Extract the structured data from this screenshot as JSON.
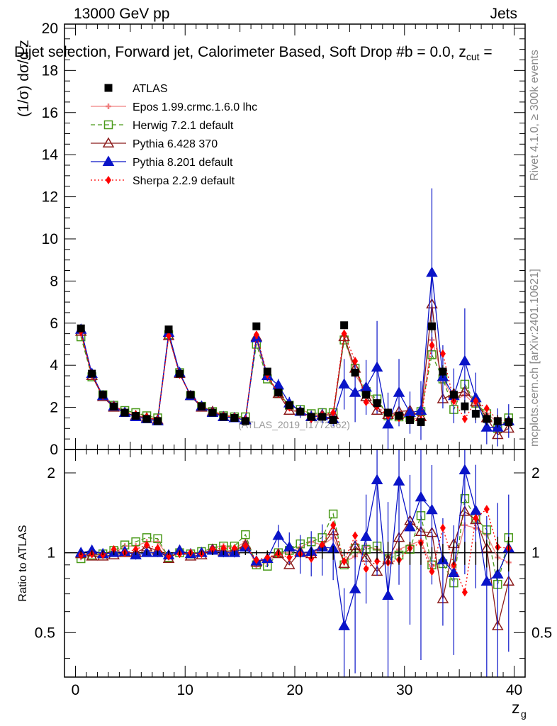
{
  "header": {
    "left": "13000 GeV pp",
    "right": "Jets",
    "title": "Dijet selection, Forward jet, Calorimeter Based, Soft Drop #b = 0.0, z",
    "title_sub": "cut",
    "title_tail": " ="
  },
  "side_labels": {
    "rivet": "Rivet 4.1.0, ≥ 300k events",
    "mcplots": "mcplots.cern.ch [arXiv:2401.10621]"
  },
  "watermark": "(ATLAS_2019_I1772062)",
  "chart_data": {
    "type": "line",
    "title": "Dijet selection, Forward jet, Calorimeter Based, Soft Drop",
    "xlabel": "z_g",
    "ylabel": "(1/σ) dσ/d z_g",
    "ratio_ylabel": "Ratio to ATLAS",
    "xlim": [
      -1,
      41
    ],
    "ylim": [
      0,
      20.2
    ],
    "ratio_ylim": [
      0.34,
      2.45
    ],
    "x_ticks": [
      0,
      10,
      20,
      30,
      40
    ],
    "y_ticks": [
      0,
      2,
      4,
      6,
      8,
      10,
      12,
      14,
      16,
      18,
      20
    ],
    "ratio_ticks": [
      0.5,
      1,
      2
    ],
    "x": [
      0.5,
      1.5,
      2.5,
      3.5,
      4.5,
      5.5,
      6.5,
      7.5,
      8.5,
      9.5,
      10.5,
      11.5,
      12.5,
      13.5,
      14.5,
      15.5,
      16.5,
      17.5,
      18.5,
      19.5,
      20.5,
      21.5,
      22.5,
      23.5,
      24.5,
      25.5,
      26.5,
      27.5,
      28.5,
      29.5,
      30.5,
      31.5,
      32.5,
      33.5,
      34.5,
      35.5,
      36.5,
      37.5,
      38.5,
      39.5
    ],
    "series": [
      {
        "name": "ATLAS",
        "marker": "square-filled",
        "color": "#000000",
        "values": [
          5.75,
          3.6,
          2.6,
          2.05,
          1.75,
          1.6,
          1.45,
          1.35,
          5.7,
          3.6,
          2.6,
          2.05,
          1.75,
          1.55,
          1.5,
          1.35,
          5.85,
          3.7,
          2.7,
          2.1,
          1.8,
          1.55,
          1.55,
          1.4,
          5.9,
          3.65,
          2.6,
          2.2,
          1.75,
          1.6,
          1.4,
          1.3,
          5.85,
          3.7,
          2.6,
          2.05,
          1.7,
          1.45,
          1.35,
          1.3
        ],
        "errors": [
          0.05,
          0.05,
          0.05,
          0.05,
          0.04,
          0.04,
          0.04,
          0.04,
          0.06,
          0.05,
          0.05,
          0.05,
          0.05,
          0.05,
          0.05,
          0.05,
          0.08,
          0.08,
          0.07,
          0.07,
          0.08,
          0.08,
          0.08,
          0.09,
          0.15,
          0.15,
          0.15,
          0.2,
          0.2,
          0.2,
          0.2,
          0.2,
          0.3,
          0.3,
          0.3,
          0.3,
          0.3,
          0.3,
          0.3,
          0.3
        ]
      },
      {
        "name": "Epos 1.99.crmc.1.6.0 lhc",
        "marker": "cross",
        "color": "#f08080",
        "dash": "",
        "values": [
          5.5,
          3.5,
          2.55,
          2.05,
          1.85,
          1.7,
          1.6,
          1.5,
          5.45,
          3.6,
          2.55,
          2.05,
          1.85,
          1.65,
          1.55,
          1.5,
          5.2,
          3.4,
          2.7,
          2.1,
          1.9,
          1.7,
          1.65,
          1.6,
          5.4,
          3.55,
          2.75,
          2.25,
          1.7,
          1.65,
          1.5,
          1.45,
          5.2,
          3.4,
          2.3,
          2.6,
          2.1,
          1.7,
          1.3,
          1.2
        ]
      },
      {
        "name": "Herwig 7.2.1 default",
        "marker": "square-open",
        "color": "#4a9a1a",
        "dash": "6,4",
        "values": [
          5.35,
          3.45,
          2.6,
          2.1,
          1.85,
          1.75,
          1.6,
          1.5,
          5.45,
          3.65,
          2.55,
          2.05,
          1.8,
          1.6,
          1.55,
          1.55,
          5.0,
          3.35,
          2.65,
          2.1,
          1.9,
          1.7,
          1.75,
          1.75,
          5.2,
          3.85,
          2.75,
          2.4,
          1.6,
          1.55,
          1.5,
          1.8,
          4.5,
          3.35,
          1.9,
          3.1,
          2.2,
          1.7,
          1.0,
          1.5
        ]
      },
      {
        "name": "Pythia 6.428 370",
        "marker": "triangle-open",
        "color": "#8b1a1a",
        "dash": "",
        "values": [
          5.6,
          3.5,
          2.5,
          2.0,
          1.75,
          1.6,
          1.5,
          1.4,
          5.4,
          3.6,
          2.55,
          2.0,
          1.8,
          1.55,
          1.5,
          1.4,
          5.35,
          3.5,
          2.65,
          1.85,
          1.8,
          1.55,
          1.65,
          1.65,
          5.35,
          3.85,
          2.5,
          1.85,
          1.65,
          1.8,
          1.85,
          1.55,
          6.9,
          2.4,
          2.65,
          2.75,
          2.25,
          1.5,
          0.7,
          1.0
        ]
      },
      {
        "name": "Pythia 8.201 default",
        "marker": "triangle-filled",
        "color": "#0a14c8",
        "dash": "",
        "values": [
          5.7,
          3.6,
          2.55,
          2.05,
          1.75,
          1.55,
          1.45,
          1.35,
          5.55,
          3.65,
          2.55,
          2.05,
          1.75,
          1.55,
          1.5,
          1.4,
          5.3,
          3.5,
          3.05,
          2.2,
          1.8,
          1.55,
          1.6,
          1.45,
          3.1,
          2.7,
          2.95,
          3.9,
          1.2,
          2.7,
          1.75,
          1.85,
          8.4,
          3.45,
          2.55,
          4.2,
          2.45,
          1.05,
          1.05,
          1.35
        ],
        "errors": [
          0.08,
          0.07,
          0.06,
          0.06,
          0.06,
          0.06,
          0.05,
          0.05,
          0.1,
          0.08,
          0.07,
          0.06,
          0.06,
          0.06,
          0.06,
          0.06,
          0.25,
          0.25,
          0.3,
          0.3,
          0.3,
          0.3,
          0.35,
          0.35,
          1.2,
          1.4,
          1.3,
          2.2,
          1.5,
          1.6,
          1.0,
          1.4,
          4.0,
          1.5,
          1.3,
          2.5,
          1.2,
          0.8,
          0.9,
          0.8
        ]
      },
      {
        "name": "Sherpa 2.2.9 default",
        "marker": "diamond-filled",
        "color": "#ff0000",
        "dash": "2,3",
        "values": [
          5.6,
          3.55,
          2.55,
          2.1,
          1.75,
          1.65,
          1.55,
          1.4,
          5.4,
          3.55,
          2.6,
          2.05,
          1.8,
          1.6,
          1.55,
          1.4,
          5.45,
          3.55,
          2.65,
          2.0,
          1.8,
          1.45,
          1.65,
          1.75,
          5.5,
          4.2,
          2.25,
          2.05,
          1.6,
          1.5,
          1.45,
          1.4,
          4.95,
          4.55,
          2.3,
          1.45,
          2.3,
          1.95,
          1.4,
          1.35
        ]
      }
    ],
    "ratios": {
      "Epos 1.99.crmc.1.6.0 lhc": [
        0.96,
        0.98,
        0.98,
        1.0,
        1.06,
        1.06,
        1.1,
        1.1,
        0.96,
        1.0,
        0.98,
        1.0,
        1.05,
        1.06,
        1.04,
        1.1,
        0.89,
        0.92,
        1.0,
        1.0,
        1.05,
        1.1,
        1.07,
        1.14,
        0.92,
        0.97,
        1.06,
        1.03,
        0.97,
        1.03,
        1.07,
        1.11,
        0.89,
        0.92,
        0.88,
        1.27,
        1.24,
        1.17,
        0.96,
        0.92
      ],
      "Herwig 7.2.1 default": [
        0.95,
        0.98,
        0.99,
        1.02,
        1.07,
        1.1,
        1.14,
        1.13,
        0.96,
        1.0,
        0.99,
        1.01,
        1.04,
        1.06,
        1.06,
        1.17,
        0.9,
        0.89,
        1.0,
        1.02,
        1.08,
        1.1,
        1.14,
        1.4,
        0.9,
        1.04,
        1.03,
        1.06,
        0.95,
        0.98,
        1.03,
        1.38,
        0.9,
        0.91,
        0.77,
        1.6,
        1.35,
        1.22,
        0.76,
        1.14
      ],
      "Pythia 6.428 370": [
        0.99,
        0.97,
        0.97,
        0.98,
        1.0,
        1.0,
        1.05,
        1.02,
        0.95,
        1.02,
        0.97,
        0.98,
        1.03,
        1.01,
        1.02,
        1.07,
        0.92,
        0.95,
        0.99,
        0.9,
        1.01,
        0.99,
        1.06,
        1.21,
        0.91,
        1.06,
        0.96,
        0.85,
        0.94,
        1.14,
        1.32,
        1.2,
        1.19,
        0.67,
        1.08,
        1.43,
        1.33,
        1.04,
        0.53,
        0.78
      ],
      "Pythia 8.201 default": [
        1.0,
        1.02,
        0.99,
        1.0,
        1.01,
        0.98,
        1.0,
        1.0,
        0.98,
        1.02,
        0.99,
        1.0,
        1.02,
        1.0,
        1.0,
        1.05,
        0.93,
        0.95,
        1.16,
        1.05,
        1.0,
        1.01,
        1.05,
        1.04,
        0.53,
        0.73,
        1.15,
        1.88,
        0.69,
        1.86,
        1.25,
        1.62,
        1.45,
        0.94,
        0.84,
        2.05,
        1.44,
        0.78,
        0.83,
        1.04
      ],
      "Sherpa 2.2.9 default": [
        0.98,
        0.99,
        0.98,
        1.03,
        1.0,
        1.03,
        1.07,
        1.04,
        0.97,
        0.99,
        1.0,
        0.99,
        1.03,
        1.04,
        1.04,
        1.06,
        0.94,
        0.96,
        0.99,
        0.96,
        0.99,
        0.95,
        1.07,
        1.27,
        0.93,
        1.16,
        0.87,
        0.93,
        0.92,
        0.94,
        1.04,
        1.09,
        0.85,
        1.24,
        0.9,
        0.71,
        1.35,
        1.46,
        1.05,
        1.04
      ]
    },
    "ratio_errors": [
      0.02,
      0.02,
      0.02,
      0.02,
      0.02,
      0.02,
      0.02,
      0.02,
      0.02,
      0.02,
      0.02,
      0.02,
      0.02,
      0.02,
      0.02,
      0.02,
      0.02,
      0.02,
      0.02,
      0.02,
      0.04,
      0.05,
      0.05,
      0.06,
      0.03,
      0.04,
      0.05,
      0.06,
      0.1,
      0.1,
      0.1,
      0.1,
      0.05,
      0.08,
      0.1,
      0.1,
      0.1,
      0.12,
      0.15,
      0.15
    ],
    "legend_position": "top-left"
  }
}
